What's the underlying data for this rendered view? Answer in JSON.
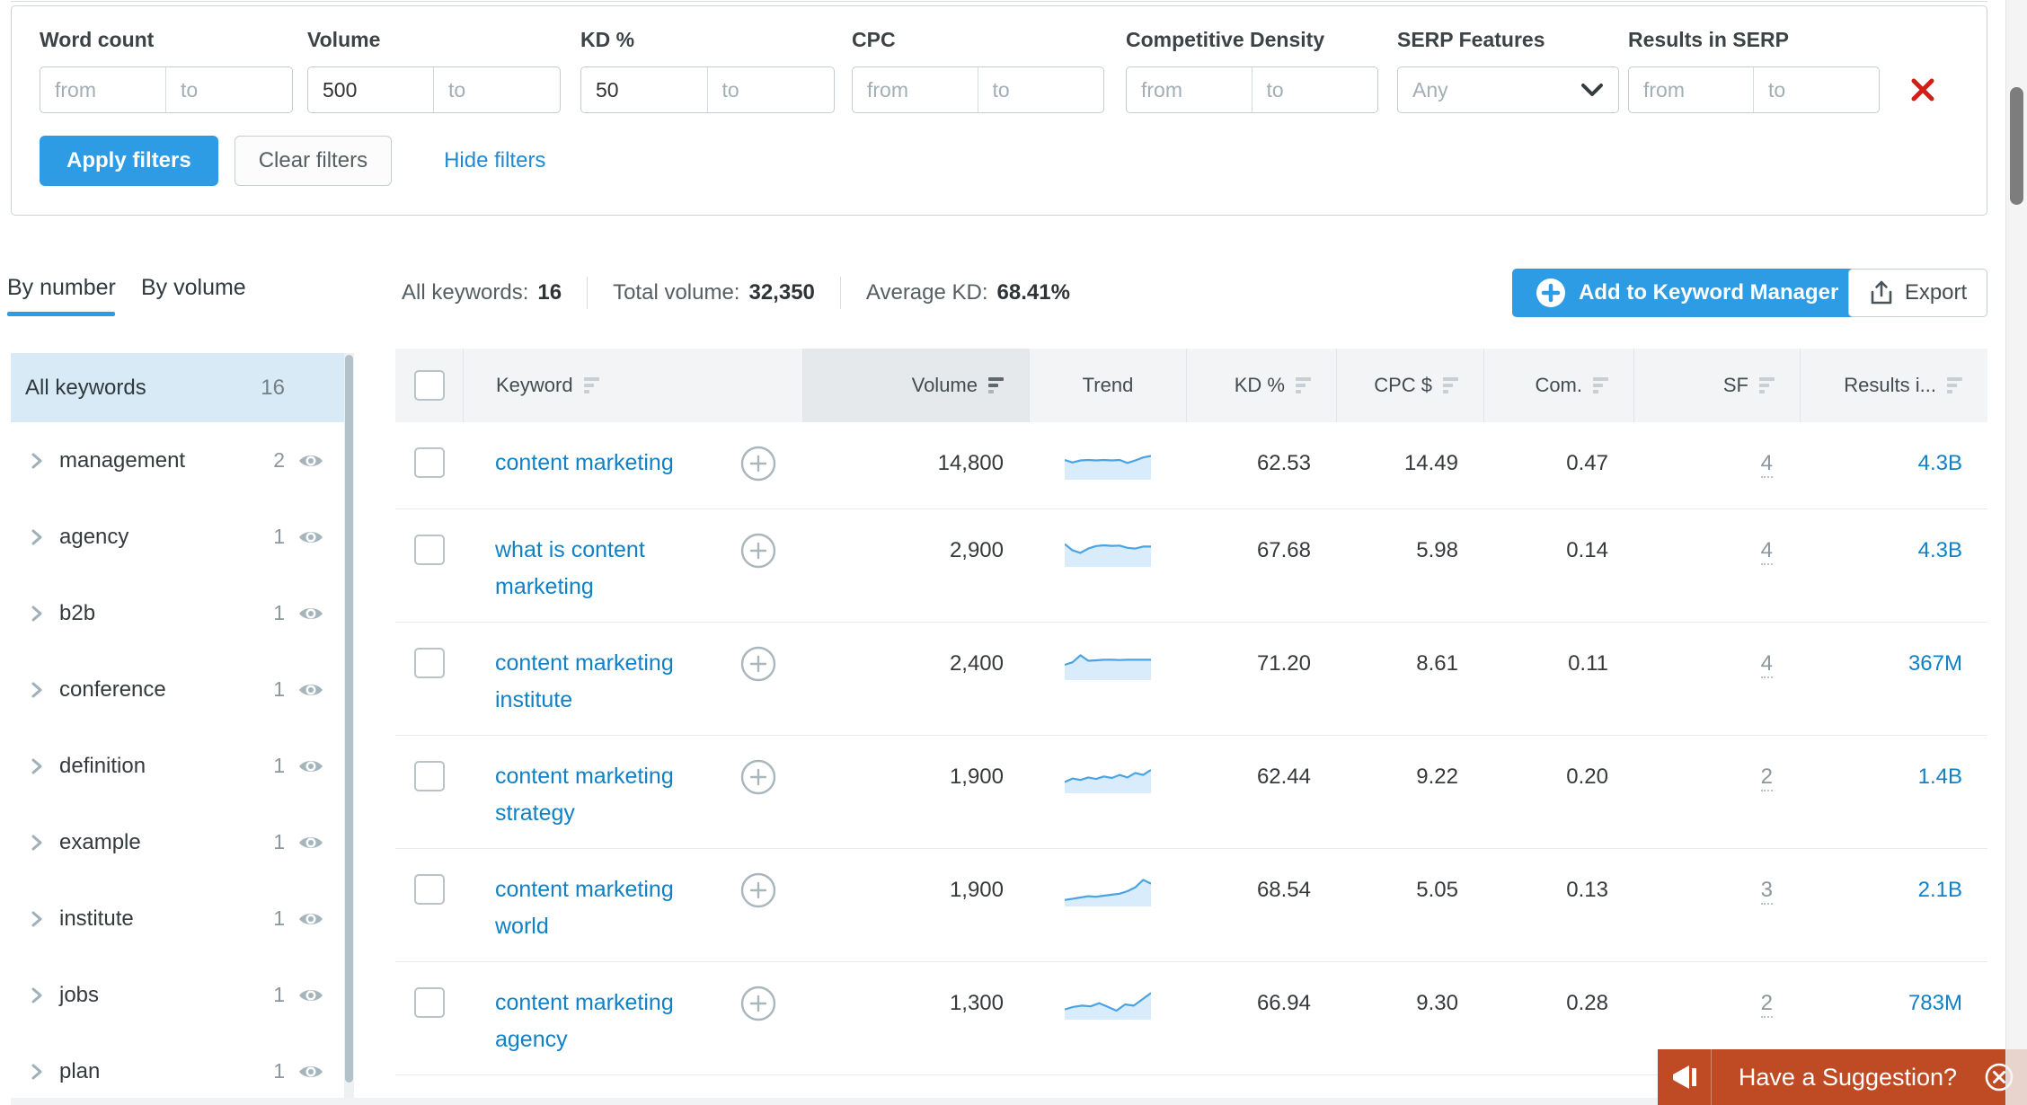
{
  "filter_bar": {
    "groups": [
      {
        "label": "Word count",
        "from_placeholder": "from",
        "to_placeholder": "to"
      },
      {
        "label": "Volume",
        "from_value": "500",
        "from_placeholder": "from",
        "to_placeholder": "to"
      },
      {
        "label": "KD %",
        "from_value": "50",
        "from_placeholder": "from",
        "to_placeholder": "to"
      },
      {
        "label": "CPC",
        "from_placeholder": "from",
        "to_placeholder": "to"
      },
      {
        "label": "Competitive Density",
        "from_placeholder": "from",
        "to_placeholder": "to"
      },
      {
        "label": "SERP Features",
        "selected": "Any"
      },
      {
        "label": "Results in SERP",
        "from_placeholder": "from",
        "to_placeholder": "to"
      }
    ],
    "apply_label": "Apply filters",
    "clear_label": "Clear filters",
    "hide_label": "Hide filters"
  },
  "tabs": {
    "by_number": "By number",
    "by_volume": "By volume"
  },
  "summary": {
    "stats": [
      {
        "label": "All keywords:",
        "value": "16"
      },
      {
        "label": "Total volume:",
        "value": "32,350"
      },
      {
        "label": "Average KD:",
        "value": "68.41%"
      }
    ]
  },
  "actions": {
    "add_to_keyword_manager": "Add to Keyword Manager",
    "export_label": "Export"
  },
  "sidebar": {
    "all_keywords": {
      "label": "All keywords",
      "count": "16"
    },
    "groups": [
      {
        "label": "management",
        "count": "2"
      },
      {
        "label": "agency",
        "count": "1"
      },
      {
        "label": "b2b",
        "count": "1"
      },
      {
        "label": "conference",
        "count": "1"
      },
      {
        "label": "definition",
        "count": "1"
      },
      {
        "label": "example",
        "count": "1"
      },
      {
        "label": "institute",
        "count": "1"
      },
      {
        "label": "jobs",
        "count": "1"
      },
      {
        "label": "plan",
        "count": "1"
      }
    ]
  },
  "table": {
    "headers": {
      "keyword": "Keyword",
      "volume": "Volume",
      "trend": "Trend",
      "kd": "KD %",
      "cpc": "CPC $",
      "com": "Com.",
      "sf": "SF",
      "results": "Results i..."
    },
    "rows": [
      {
        "keyword": "content marketing",
        "volume": "14,800",
        "kd": "62.53",
        "cpc": "14.49",
        "com": "0.47",
        "sf": "4",
        "results": "4.3B",
        "trend": [
          0.68,
          0.58,
          0.66,
          0.68,
          0.66,
          0.68,
          0.66,
          0.68,
          0.56,
          0.66,
          0.78,
          0.84
        ]
      },
      {
        "keyword": "what is content marketing",
        "volume": "2,900",
        "kd": "67.68",
        "cpc": "5.98",
        "com": "0.14",
        "sf": "4",
        "results": "4.3B",
        "trend": [
          0.8,
          0.55,
          0.45,
          0.62,
          0.72,
          0.75,
          0.73,
          0.74,
          0.65,
          0.62,
          0.7,
          0.7
        ]
      },
      {
        "keyword": "content marketing institute",
        "volume": "2,400",
        "kd": "71.20",
        "cpc": "8.61",
        "com": "0.11",
        "sf": "4",
        "results": "367M",
        "trend": [
          0.5,
          0.6,
          0.88,
          0.66,
          0.68,
          0.7,
          0.7,
          0.69,
          0.7,
          0.7,
          0.7,
          0.7
        ]
      },
      {
        "keyword": "content marketing strategy",
        "volume": "1,900",
        "kd": "62.44",
        "cpc": "9.22",
        "com": "0.20",
        "sf": "2",
        "results": "1.4B",
        "trend": [
          0.34,
          0.48,
          0.42,
          0.52,
          0.46,
          0.56,
          0.5,
          0.62,
          0.52,
          0.7,
          0.62,
          0.82
        ]
      },
      {
        "keyword": "content marketing world",
        "volume": "1,900",
        "kd": "68.54",
        "cpc": "5.05",
        "com": "0.13",
        "sf": "3",
        "results": "2.1B",
        "trend": [
          0.15,
          0.2,
          0.25,
          0.3,
          0.28,
          0.32,
          0.36,
          0.4,
          0.5,
          0.65,
          0.95,
          0.8
        ]
      },
      {
        "keyword": "content marketing agency",
        "volume": "1,300",
        "kd": "66.94",
        "cpc": "9.30",
        "com": "0.28",
        "sf": "2",
        "results": "783M",
        "trend": [
          0.3,
          0.4,
          0.45,
          0.42,
          0.55,
          0.4,
          0.25,
          0.5,
          0.45,
          0.7,
          0.95
        ]
      }
    ]
  },
  "banner": {
    "text": "Have a Suggestion?"
  },
  "colors": {
    "accent_blue": "#2d9ce5",
    "link_blue": "#1181c6",
    "banner_orange": "#bf4b24",
    "sidebar_active_bg": "#d8eaf6"
  }
}
